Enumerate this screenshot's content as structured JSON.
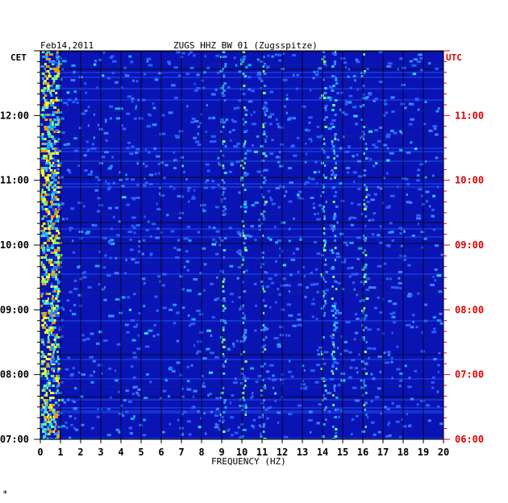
{
  "header": {
    "date": "Feb14,2011",
    "station": "ZUGS HHZ BW 01 (Zugsspitze)"
  },
  "chart_data": {
    "type": "heatmap",
    "title": "ZUGS HHZ BW 01 (Zugsspitze)",
    "date": "Feb14,2011",
    "xlabel": "FREQUENCY (HZ)",
    "xlim": [
      0,
      20
    ],
    "x_ticks": [
      "0",
      "1",
      "2",
      "3",
      "4",
      "5",
      "6",
      "7",
      "8",
      "9",
      "10",
      "11",
      "12",
      "13",
      "14",
      "15",
      "16",
      "17",
      "18",
      "19",
      "20"
    ],
    "left_axis_label": "CET",
    "right_axis_label": "UTC",
    "left_ticks": [
      "12:00",
      "11:00",
      "10:00",
      "09:00",
      "08:00",
      "07:00"
    ],
    "right_ticks": [
      "11:00",
      "10:00",
      "09:00",
      "08:00",
      "07:00",
      "06:00"
    ],
    "time_range_cet": [
      "07:00",
      "13:00"
    ],
    "grid": true,
    "colors": {
      "background": "#0a14b4",
      "axis_right": "#dd0000",
      "axis_left": "#000000"
    },
    "bright_bands_hz": [
      0.2,
      9.0,
      10.0,
      11.0,
      14.0,
      14.5,
      16.0
    ]
  },
  "footer_mark": "*"
}
